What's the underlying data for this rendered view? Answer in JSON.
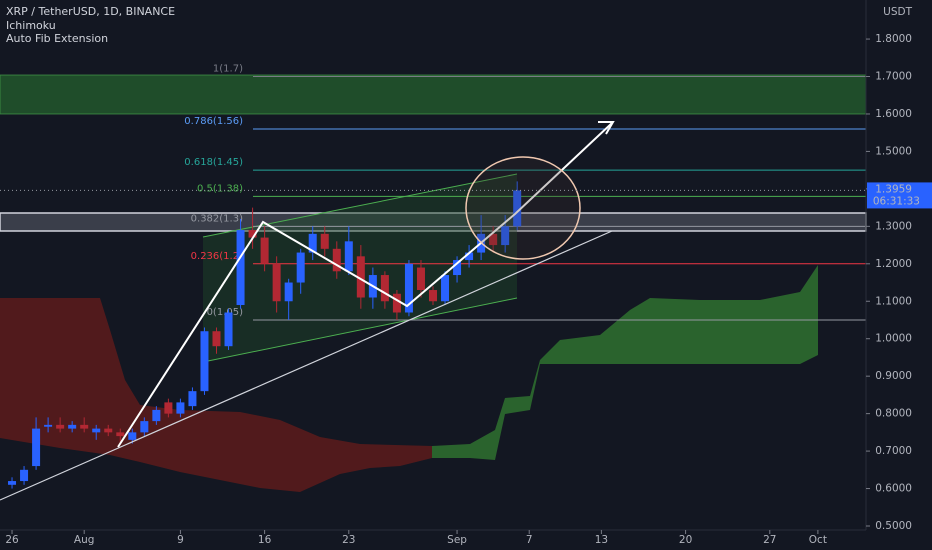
{
  "chart_data": {
    "type": "candlestick",
    "title": "XRP / TetherUSD, 1D, BINANCE",
    "indicators": [
      "Ichimoku",
      "Auto Fib Extension"
    ],
    "currency": "USDT",
    "x": [
      "Jul 26",
      "Jul 27",
      "Jul 28",
      "Jul 29",
      "Jul 30",
      "Jul 31",
      "Aug 1",
      "Aug 2",
      "Aug 3",
      "Aug 4",
      "Aug 5",
      "Aug 6",
      "Aug 7",
      "Aug 8",
      "Aug 9",
      "Aug 10",
      "Aug 11",
      "Aug 12",
      "Aug 13",
      "Aug 14",
      "Aug 15",
      "Aug 16",
      "Aug 17",
      "Aug 18",
      "Aug 19",
      "Aug 20",
      "Aug 21",
      "Aug 22",
      "Aug 23",
      "Aug 24",
      "Aug 25",
      "Aug 26",
      "Aug 27",
      "Aug 28",
      "Aug 29",
      "Aug 30",
      "Aug 31",
      "Sep 1",
      "Sep 2",
      "Sep 3",
      "Sep 4",
      "Sep 5",
      "Sep 6"
    ],
    "open": [
      0.61,
      0.62,
      0.66,
      0.765,
      0.77,
      0.76,
      0.77,
      0.75,
      0.76,
      0.75,
      0.73,
      0.75,
      0.78,
      0.83,
      0.8,
      0.82,
      0.86,
      1.02,
      0.98,
      1.09,
      1.29,
      1.27,
      1.2,
      1.1,
      1.15,
      1.23,
      1.28,
      1.24,
      1.18,
      1.22,
      1.11,
      1.17,
      1.12,
      1.07,
      1.19,
      1.13,
      1.1,
      1.17,
      1.21,
      1.23,
      1.28,
      1.25,
      1.3
    ],
    "high": [
      0.63,
      0.66,
      0.79,
      0.79,
      0.79,
      0.78,
      0.79,
      0.77,
      0.77,
      0.76,
      0.76,
      0.79,
      0.82,
      0.84,
      0.84,
      0.87,
      1.03,
      1.03,
      1.08,
      1.32,
      1.35,
      1.3,
      1.22,
      1.16,
      1.24,
      1.3,
      1.3,
      1.26,
      1.3,
      1.25,
      1.19,
      1.18,
      1.13,
      1.21,
      1.21,
      1.14,
      1.18,
      1.22,
      1.25,
      1.33,
      1.3,
      1.33,
      1.42
    ],
    "low": [
      0.6,
      0.61,
      0.65,
      0.75,
      0.75,
      0.75,
      0.75,
      0.73,
      0.74,
      0.72,
      0.72,
      0.74,
      0.77,
      0.79,
      0.79,
      0.81,
      0.85,
      0.96,
      0.97,
      1.08,
      1.24,
      1.18,
      1.07,
      1.05,
      1.12,
      1.21,
      1.22,
      1.16,
      1.17,
      1.08,
      1.08,
      1.08,
      1.05,
      1.06,
      1.11,
      1.09,
      1.09,
      1.15,
      1.19,
      1.21,
      1.23,
      1.23,
      1.29
    ],
    "close": [
      0.62,
      0.65,
      0.76,
      0.77,
      0.76,
      0.77,
      0.76,
      0.76,
      0.75,
      0.74,
      0.75,
      0.78,
      0.81,
      0.8,
      0.83,
      0.86,
      1.02,
      0.98,
      1.07,
      1.29,
      1.27,
      1.2,
      1.1,
      1.15,
      1.23,
      1.28,
      1.24,
      1.18,
      1.26,
      1.11,
      1.17,
      1.1,
      1.07,
      1.2,
      1.13,
      1.1,
      1.17,
      1.21,
      1.23,
      1.28,
      1.25,
      1.3,
      1.3959
    ],
    "up_color": "#2962ff",
    "down_color": "#b22833",
    "xlim": [
      "Jul 25",
      "Oct 5"
    ],
    "xticks": [
      {
        "value": "Jul 26",
        "label": "26"
      },
      {
        "value": "Aug 1",
        "label": "Aug"
      },
      {
        "value": "Aug 9",
        "label": "9"
      },
      {
        "value": "Aug 16",
        "label": "16"
      },
      {
        "value": "Aug 23",
        "label": "23"
      },
      {
        "value": "Sep 1",
        "label": "Sep"
      },
      {
        "value": "Sep 7",
        "label": "7"
      },
      {
        "value": "Sep 13",
        "label": "13"
      },
      {
        "value": "Sep 20",
        "label": "20"
      },
      {
        "value": "Sep 27",
        "label": "27"
      },
      {
        "value": "Oct 1",
        "label": "Oct"
      }
    ],
    "ylim": [
      0.5,
      1.9
    ],
    "yticks": [
      {
        "value": 0.5,
        "label": "0.5000"
      },
      {
        "value": 0.6,
        "label": "0.6000"
      },
      {
        "value": 0.7,
        "label": "0.7000"
      },
      {
        "value": 0.8,
        "label": "0.8000"
      },
      {
        "value": 0.9,
        "label": "0.9000"
      },
      {
        "value": 1.0,
        "label": "1.0000"
      },
      {
        "value": 1.1,
        "label": "1.1000"
      },
      {
        "value": 1.2,
        "label": "1.2000"
      },
      {
        "value": 1.3,
        "label": "1.3000"
      },
      {
        "value": 1.4,
        "label": "1.4000"
      },
      {
        "value": 1.5,
        "label": "1.5000"
      },
      {
        "value": 1.6,
        "label": "1.6000"
      },
      {
        "value": 1.7,
        "label": "1.7000"
      },
      {
        "value": 1.8,
        "label": "1.8000"
      }
    ],
    "fib_levels": [
      {
        "label": "1(1.7)",
        "value": 1.7,
        "color": "#787b86"
      },
      {
        "label": "0.786(1.56)",
        "value": 1.56,
        "color": "#5b9cf6"
      },
      {
        "label": "0.618(1.45)",
        "value": 1.45,
        "color": "#26a69a"
      },
      {
        "label": "0.5(1.38)",
        "value": 1.38,
        "color": "#4caf50"
      },
      {
        "label": "0.382(1.3)",
        "value": 1.3,
        "color": "#9598a1"
      },
      {
        "label": "0.236(1.2)",
        "value": 1.2,
        "color": "#f23645"
      },
      {
        "label": "0(1.05)",
        "value": 1.05,
        "color": "#9598a1"
      }
    ],
    "last_price": {
      "value": 1.3959,
      "label": "1.3959"
    },
    "countdown": "06:31:33"
  }
}
